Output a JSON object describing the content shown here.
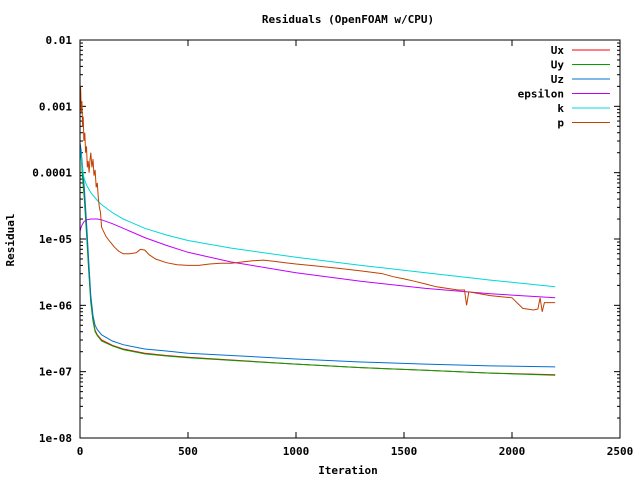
{
  "chart_data": {
    "type": "line",
    "title": "Residuals (OpenFOAM w/CPU)",
    "xlabel": "Iteration",
    "ylabel": "Residual",
    "xlim": [
      0,
      2500
    ],
    "ylim": [
      1e-08,
      0.01
    ],
    "yscale": "log",
    "grid": false,
    "legend_position": "top-right",
    "x_ticks": [
      0,
      500,
      1000,
      1500,
      2000,
      2500
    ],
    "x_tick_labels": [
      "0",
      "500",
      "1000",
      "1500",
      "2000",
      "2500"
    ],
    "y_ticks": [
      1e-08,
      1e-07,
      1e-06,
      1e-05,
      0.0001,
      0.001,
      0.01
    ],
    "y_tick_labels": [
      "1e-08",
      "1e-07",
      "1e-06",
      "1e-05",
      "0.0001",
      "0.001",
      "0.01"
    ],
    "series": [
      {
        "name": "Ux",
        "color": "#ff0000",
        "x": [
          0,
          5,
          10,
          20,
          30,
          40,
          50,
          60,
          70,
          80,
          100,
          150,
          200,
          300,
          400,
          500,
          700,
          1000,
          1300,
          1600,
          1900,
          2200
        ],
        "y": [
          0.00025,
          0.0002,
          0.00012,
          5e-05,
          1.5e-05,
          4e-06,
          1.2e-06,
          6e-07,
          4.2e-07,
          3.6e-07,
          3e-07,
          2.5e-07,
          2.2e-07,
          1.9e-07,
          1.75e-07,
          1.65e-07,
          1.5e-07,
          1.3e-07,
          1.15e-07,
          1.05e-07,
          9.5e-08,
          9e-08
        ]
      },
      {
        "name": "Uy",
        "color": "#00a000",
        "x": [
          0,
          5,
          10,
          20,
          30,
          40,
          50,
          60,
          70,
          80,
          100,
          150,
          200,
          300,
          400,
          500,
          700,
          1000,
          1300,
          1600,
          1900,
          2200
        ],
        "y": [
          0.00022,
          0.00018,
          0.0001,
          4e-05,
          1.2e-05,
          3.5e-06,
          1.1e-06,
          5.8e-07,
          4e-07,
          3.5e-07,
          2.9e-07,
          2.45e-07,
          2.15e-07,
          1.85e-07,
          1.72e-07,
          1.62e-07,
          1.48e-07,
          1.3e-07,
          1.15e-07,
          1.05e-07,
          9.5e-08,
          8.8e-08
        ]
      },
      {
        "name": "Uz",
        "color": "#0070d0",
        "x": [
          0,
          5,
          10,
          20,
          30,
          40,
          50,
          60,
          70,
          80,
          100,
          150,
          200,
          300,
          400,
          500,
          700,
          1000,
          1300,
          1600,
          1900,
          2200
        ],
        "y": [
          0.00028,
          0.00022,
          0.00014,
          6e-05,
          1.8e-05,
          5e-06,
          1.4e-06,
          7e-07,
          5e-07,
          4.3e-07,
          3.6e-07,
          2.9e-07,
          2.55e-07,
          2.2e-07,
          2.05e-07,
          1.9e-07,
          1.75e-07,
          1.55e-07,
          1.4e-07,
          1.3e-07,
          1.22e-07,
          1.18e-07
        ]
      },
      {
        "name": "epsilon",
        "color": "#c000ff",
        "x": [
          0,
          5,
          10,
          20,
          30,
          50,
          80,
          100,
          150,
          200,
          300,
          400,
          500,
          700,
          1000,
          1300,
          1600,
          1900,
          2200
        ],
        "y": [
          1.3e-05,
          1.5e-05,
          1.65e-05,
          1.85e-05,
          1.95e-05,
          2e-05,
          2e-05,
          1.95e-05,
          1.7e-05,
          1.45e-05,
          1.05e-05,
          8e-06,
          6.3e-06,
          4.5e-06,
          3.1e-06,
          2.3e-06,
          1.8e-06,
          1.5e-06,
          1.3e-06
        ]
      },
      {
        "name": "k",
        "color": "#00d8d8",
        "x": [
          0,
          5,
          10,
          20,
          30,
          50,
          80,
          100,
          150,
          200,
          300,
          400,
          500,
          700,
          1000,
          1300,
          1600,
          1900,
          2200
        ],
        "y": [
          0.00025,
          0.00018,
          0.00012,
          8e-05,
          6.5e-05,
          5e-05,
          3.8e-05,
          3.3e-05,
          2.5e-05,
          2e-05,
          1.45e-05,
          1.15e-05,
          9.5e-06,
          7.3e-06,
          5.3e-06,
          4e-06,
          3.1e-06,
          2.4e-06,
          1.9e-06
        ]
      },
      {
        "name": "p",
        "color": "#c04000",
        "x": [
          0,
          3,
          6,
          9,
          12,
          15,
          18,
          22,
          26,
          30,
          34,
          38,
          42,
          46,
          50,
          55,
          60,
          65,
          70,
          75,
          80,
          85,
          90,
          95,
          100,
          120,
          140,
          160,
          180,
          200,
          230,
          260,
          280,
          300,
          320,
          350,
          400,
          450,
          500,
          550,
          600,
          650,
          700,
          750,
          800,
          850,
          900,
          950,
          1000,
          1100,
          1200,
          1300,
          1400,
          1450,
          1500,
          1550,
          1600,
          1650,
          1700,
          1750,
          1780,
          1790,
          1800,
          1850,
          1900,
          1950,
          2000,
          2050,
          2100,
          2120,
          2130,
          2140,
          2150,
          2200
        ],
        "y": [
          0.0015,
          0.002,
          0.0008,
          0.0012,
          0.0005,
          0.0007,
          0.0003,
          0.0004,
          0.0002,
          0.00025,
          0.00012,
          0.00015,
          0.0001,
          0.00015,
          0.0002,
          0.00012,
          0.00016,
          9e-05,
          0.00011,
          6e-05,
          7e-05,
          4e-05,
          3e-05,
          2.5e-05,
          1.5e-05,
          1.1e-05,
          9e-06,
          7.5e-06,
          6.5e-06,
          6e-06,
          6e-06,
          6.2e-06,
          7e-06,
          6.8e-06,
          5.8e-06,
          5e-06,
          4.4e-06,
          4.1e-06,
          4e-06,
          4e-06,
          4.2e-06,
          4.3e-06,
          4.3e-06,
          4.5e-06,
          4.7e-06,
          4.8e-06,
          4.6e-06,
          4.4e-06,
          4.2e-06,
          3.9e-06,
          3.6e-06,
          3.3e-06,
          3e-06,
          2.7e-06,
          2.5e-06,
          2.3e-06,
          2.1e-06,
          1.9e-06,
          1.8e-06,
          1.7e-06,
          1.7e-06,
          1e-06,
          1.6e-06,
          1.5e-06,
          1.4e-06,
          1.35e-06,
          1.3e-06,
          9e-07,
          8.5e-07,
          8.8e-07,
          1.3e-06,
          8e-07,
          1.1e-06,
          1.1e-06
        ]
      }
    ]
  }
}
